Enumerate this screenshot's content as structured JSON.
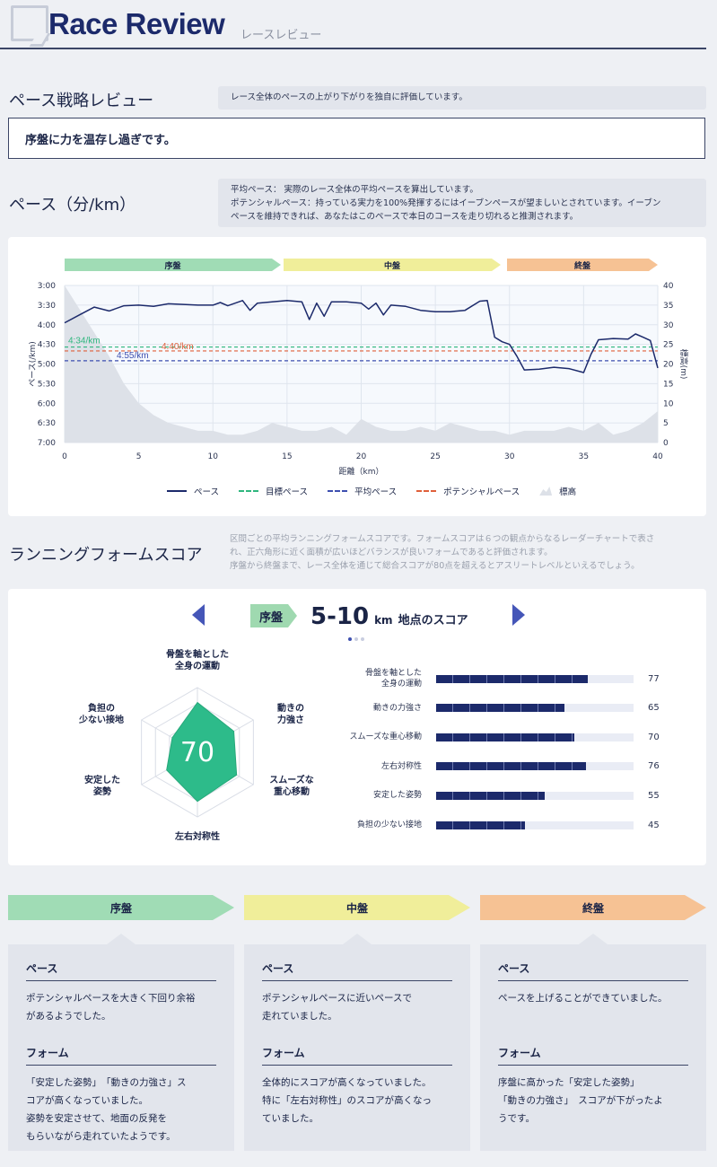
{
  "header": {
    "title": "Race Review",
    "subtitle": "レースレビュー"
  },
  "pace_strategy": {
    "title": "ペース戦略レビュー",
    "note": "レース全体のペースの上がり下がりを独自に評価しています。",
    "verdict": "序盤に力を温存し過ぎです。"
  },
  "pace": {
    "title": "ペース（分/km）",
    "note_line1": "平均ペース： 実際のレース全体の平均ペースを算出しています。",
    "note_line2": "ポテンシャルペース：持っている実力を100%発揮するにはイーブンペースが望ましいとされています。イーブン",
    "note_line3": "ペースを維持できれば、あなたはこのペースで本日のコースを走り切れると推測されます。"
  },
  "chart_phases": [
    "序盤",
    "中盤",
    "終盤"
  ],
  "chart_data": {
    "type": "line",
    "xlabel": "距離（km）",
    "ylabel": "ペース(/km)",
    "y2label": "標高(m)",
    "xlim": [
      0,
      40
    ],
    "x_ticks": [
      "0",
      "5",
      "10",
      "15",
      "20",
      "25",
      "30",
      "35",
      "40"
    ],
    "y_ticks": [
      "3:00",
      "3:30",
      "4:00",
      "4:30",
      "5:00",
      "5:30",
      "6:00",
      "6:30",
      "7:00"
    ],
    "y2_ticks": [
      "40",
      "35",
      "30",
      "25",
      "20",
      "15",
      "10",
      "5",
      "0"
    ],
    "ylim_seconds": [
      180,
      420
    ],
    "y2lim": [
      0,
      40
    ],
    "series": [
      {
        "name": "ペース",
        "color": "#1c2a6b",
        "x": [
          0,
          1,
          2,
          3,
          4,
          5,
          6,
          7,
          8,
          9,
          10,
          10.5,
          11,
          12,
          12.5,
          13,
          14,
          15,
          16,
          16.5,
          17,
          17.5,
          18,
          19,
          20,
          20.5,
          21,
          21.5,
          22,
          23,
          24,
          25,
          26,
          27,
          28,
          28.5,
          29,
          29.5,
          30,
          30.5,
          31,
          32,
          33,
          34,
          35,
          35.5,
          36,
          37,
          38,
          38.5,
          39,
          39.5,
          40
        ],
        "y": [
          237,
          225,
          213,
          219,
          211,
          210,
          212,
          208,
          209,
          210,
          210,
          206,
          211,
          203,
          218,
          207,
          205,
          203,
          205,
          232,
          207,
          227,
          205,
          205,
          207,
          216,
          207,
          225,
          210,
          212,
          218,
          220,
          220,
          218,
          204,
          203,
          259,
          266,
          270,
          288,
          309,
          308,
          305,
          307,
          313,
          285,
          263,
          261,
          262,
          254,
          259,
          264,
          306
        ]
      },
      {
        "name": "目標ペース",
        "color": "#2fb67e",
        "value_label": "4:34/km",
        "value_seconds": 274
      },
      {
        "name": "平均ペース",
        "color": "#3d4fb0",
        "value_label": "4:55/km",
        "value_seconds": 295
      },
      {
        "name": "ポテンシャルペース",
        "color": "#e0603a",
        "value_label": "4:40/km",
        "value_seconds": 280
      },
      {
        "name": "標高",
        "color": "#dde1e8",
        "x": [
          0,
          1,
          2,
          3,
          4,
          5,
          6,
          7,
          8,
          9,
          10,
          11,
          12,
          13,
          14,
          15,
          16,
          17,
          18,
          19,
          20,
          21,
          22,
          23,
          24,
          25,
          26,
          27,
          28,
          29,
          30,
          31,
          32,
          33,
          34,
          35,
          36,
          37,
          38,
          39,
          40
        ],
        "y": [
          40,
          34,
          28,
          22,
          15,
          10,
          7,
          5,
          4,
          3,
          3,
          2,
          2,
          3,
          5,
          4,
          3,
          3,
          4,
          2,
          6,
          4,
          3,
          3,
          4,
          3,
          5,
          4,
          3,
          3,
          2,
          3,
          3,
          3,
          4,
          3,
          5,
          2,
          3,
          5,
          8
        ]
      }
    ]
  },
  "form": {
    "title": "ランニングフォームスコア",
    "note_line1": "区間ごとの平均ランニングフォームスコアです。フォームスコアは６つの観点からなるレーダーチャートで表さ",
    "note_line2": "れ、正六角形に近く面積が広いほどバランスが良いフォームであると評価されます。",
    "note_line3": "序盤から終盤まで、レース全体を通じて総合スコアが80点を超えるとアスリートレベルといえるでしょう。",
    "segment_badge": "序盤",
    "range": "5-10",
    "range_unit": "km",
    "range_suffix": "地点のスコア",
    "total_score": "70",
    "radar_labels": [
      [
        "骨盤を軸とした",
        "全身の運動"
      ],
      [
        "動きの",
        "力強さ"
      ],
      [
        "スムーズな",
        "重心移動"
      ],
      [
        "左右対称性"
      ],
      [
        "安定した",
        "姿勢"
      ],
      [
        "負担の",
        "少ない接地"
      ]
    ],
    "bars": [
      {
        "label1": "骨盤を軸とした",
        "label2": "全身の運動",
        "value": 77
      },
      {
        "label1": "動きの力強さ",
        "label2": "",
        "value": 65
      },
      {
        "label1": "スムーズな重心移動",
        "label2": "",
        "value": 70
      },
      {
        "label1": "左右対称性",
        "label2": "",
        "value": 76
      },
      {
        "label1": "安定した姿勢",
        "label2": "",
        "value": 55
      },
      {
        "label1": "負担の少ない接地",
        "label2": "",
        "value": 45
      }
    ]
  },
  "phases": [
    {
      "name": "序盤",
      "color": "#a0dcb5",
      "pace_h": "ペース",
      "pace_l1": "ポテンシャルペースを大きく下回り余裕",
      "pace_l2": "があるようでした。",
      "form_h": "フォーム",
      "form_l1": "「安定した姿勢」　「動きの力強さ」ス",
      "form_l2": "コアが高くなっていました。",
      "form_l3": "姿勢を安定させて、地面の反発を",
      "form_l4": "もらいながら走れていたようです。"
    },
    {
      "name": "中盤",
      "color": "#f0ee9a",
      "pace_h": "ペース",
      "pace_l1": "ポテンシャルペースに近いペースで",
      "pace_l2": "走れていました。",
      "form_h": "フォーム",
      "form_l1": "全体的にスコアが高くなっていました。",
      "form_l2": "特に「左右対称性」のスコアが高くなっ",
      "form_l3": "ていました。",
      "form_l4": ""
    },
    {
      "name": "終盤",
      "color": "#f6c294",
      "pace_h": "ペース",
      "pace_l1": "ペースを上げることができていました。",
      "pace_l2": "",
      "form_h": "フォーム",
      "form_l1": "序盤に高かった「安定した姿勢」",
      "form_l2": "「動きの力強さ」　スコアが下がったよ",
      "form_l3": "うです。",
      "form_l4": ""
    }
  ]
}
